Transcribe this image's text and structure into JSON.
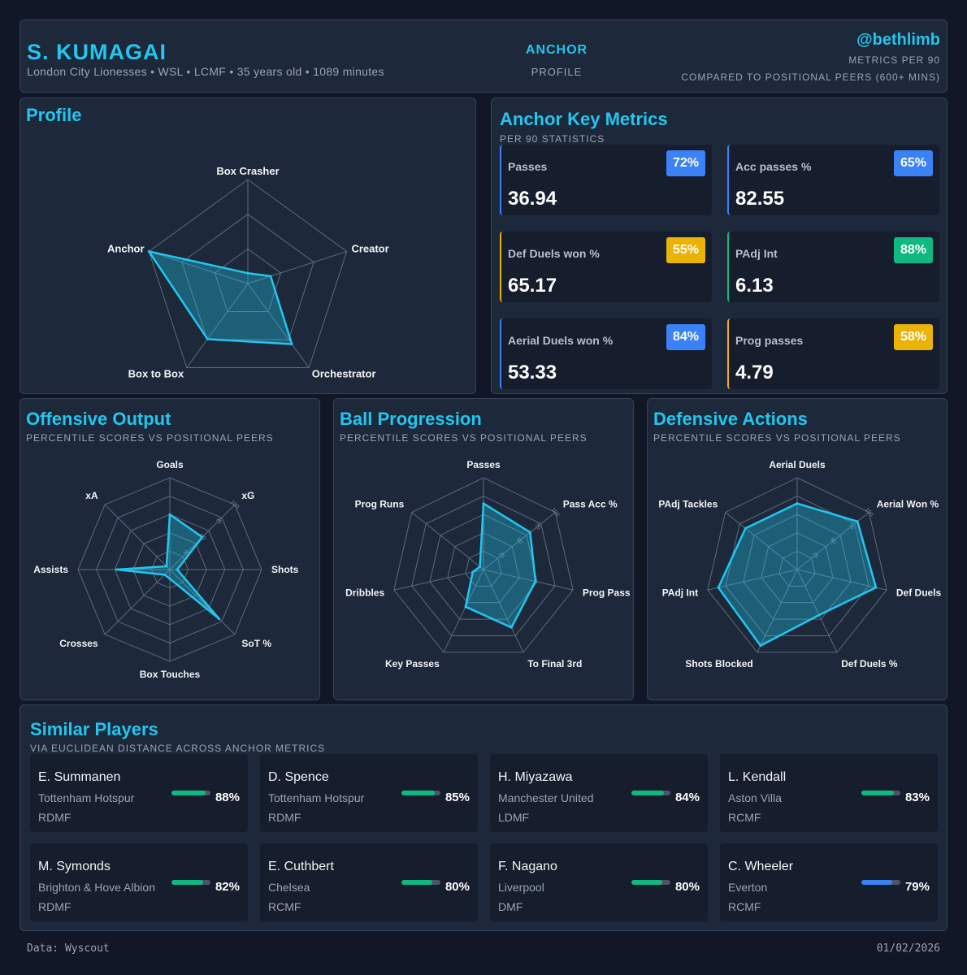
{
  "header": {
    "player_name": "S. KUMAGAI",
    "player_meta": "London City Lionesses • WSL • LCMF • 35 years old • 1089 minutes",
    "role": "ANCHOR",
    "role_sub": "PROFILE",
    "handle": "@bethlimb",
    "metrics_note": "METRICS PER 90",
    "comparison_note": "COMPARED TO POSITIONAL PEERS (600+ MINS)"
  },
  "profile": {
    "title": "Profile"
  },
  "key_metrics": {
    "title": "Anchor Key Metrics",
    "subtitle": "PER 90 STATISTICS",
    "items": [
      {
        "name": "Passes",
        "value": "36.94",
        "percentile": "72%",
        "color": "#3b82f6"
      },
      {
        "name": "Acc passes %",
        "value": "82.55",
        "percentile": "65%",
        "color": "#3b82f6"
      },
      {
        "name": "Def Duels won %",
        "value": "65.17",
        "percentile": "55%",
        "color": "#eab308"
      },
      {
        "name": "PAdj Int",
        "value": "6.13",
        "percentile": "88%",
        "color": "#10b981"
      },
      {
        "name": "Aerial Duels won %",
        "value": "53.33",
        "percentile": "84%",
        "color": "#3b82f6"
      },
      {
        "name": "Prog passes",
        "value": "4.79",
        "percentile": "58%",
        "color": "#eab308"
      }
    ]
  },
  "offensive": {
    "title": "Offensive Output",
    "subtitle": "PERCENTILE SCORES VS POSITIONAL PEERS"
  },
  "progression": {
    "title": "Ball Progression",
    "subtitle": "PERCENTILE SCORES VS POSITIONAL PEERS"
  },
  "defensive": {
    "title": "Defensive Actions",
    "subtitle": "PERCENTILE SCORES VS POSITIONAL PEERS"
  },
  "similar": {
    "title": "Similar Players",
    "subtitle": "VIA EUCLIDEAN DISTANCE ACROSS ANCHOR METRICS",
    "players": [
      {
        "name": "E. Summanen",
        "club": "Tottenham Hotspur",
        "position": "RDMF",
        "similarity": 88,
        "similarity_label": "88%",
        "color": "#10b981"
      },
      {
        "name": "D. Spence",
        "club": "Tottenham Hotspur",
        "position": "RDMF",
        "similarity": 85,
        "similarity_label": "85%",
        "color": "#10b981"
      },
      {
        "name": "H. Miyazawa",
        "club": "Manchester United",
        "position": "LDMF",
        "similarity": 84,
        "similarity_label": "84%",
        "color": "#10b981"
      },
      {
        "name": "L. Kendall",
        "club": "Aston Villa",
        "position": "RCMF",
        "similarity": 83,
        "similarity_label": "83%",
        "color": "#10b981"
      },
      {
        "name": "M. Symonds",
        "club": "Brighton & Hove Albion",
        "position": "RDMF",
        "similarity": 82,
        "similarity_label": "82%",
        "color": "#10b981"
      },
      {
        "name": "E. Cuthbert",
        "club": "Chelsea",
        "position": "RCMF",
        "similarity": 80,
        "similarity_label": "80%",
        "color": "#10b981"
      },
      {
        "name": "F. Nagano",
        "club": "Liverpool",
        "position": "DMF",
        "similarity": 80,
        "similarity_label": "80%",
        "color": "#10b981"
      },
      {
        "name": "C. Wheeler",
        "club": "Everton",
        "position": "RCMF",
        "similarity": 79,
        "similarity_label": "79%",
        "color": "#3b82f6"
      }
    ]
  },
  "footer": {
    "source": "Data: Wyscout",
    "date": "01/02/2026"
  },
  "colors": {
    "accent": "#22c6ee",
    "background": "#111726",
    "panel": "#1d283a"
  },
  "chart_data": [
    {
      "type": "radar",
      "title": "Profile",
      "axes": [
        "Box Crasher",
        "Creator",
        "Orchestrator",
        "Box to Box",
        "Anchor"
      ],
      "values": [
        10,
        23,
        72,
        66,
        100
      ],
      "range": [
        0,
        100
      ]
    },
    {
      "type": "radar",
      "title": "Offensive Output",
      "axes": [
        "Goals",
        "xG",
        "Shots",
        "SoT %",
        "Box Touches",
        "Crosses",
        "Assists",
        "xA"
      ],
      "values": [
        60,
        50,
        8,
        76,
        10,
        8,
        58,
        5
      ],
      "range": [
        0,
        100
      ],
      "tick_labels": [
        "25",
        "50",
        "75",
        "100"
      ]
    },
    {
      "type": "radar",
      "title": "Ball Progression",
      "axes": [
        "Passes",
        "Pass Acc %",
        "Prog Pass",
        "To Final 3rd",
        "Key Passes",
        "Dribbles",
        "Prog Runs"
      ],
      "values": [
        72,
        65,
        58,
        70,
        45,
        12,
        5
      ],
      "range": [
        0,
        100
      ],
      "tick_labels": [
        "25",
        "50",
        "75",
        "100"
      ]
    },
    {
      "type": "radar",
      "title": "Defensive Actions",
      "axes": [
        "Aerial Duels",
        "Aerial Won %",
        "Def Duels",
        "Def Duels %",
        "Shots Blocked",
        "PAdj Int",
        "PAdj Tackles"
      ],
      "values": [
        72,
        84,
        88,
        55,
        92,
        88,
        72
      ],
      "range": [
        0,
        100
      ],
      "tick_labels": [
        "25",
        "50",
        "75",
        "100"
      ]
    }
  ]
}
